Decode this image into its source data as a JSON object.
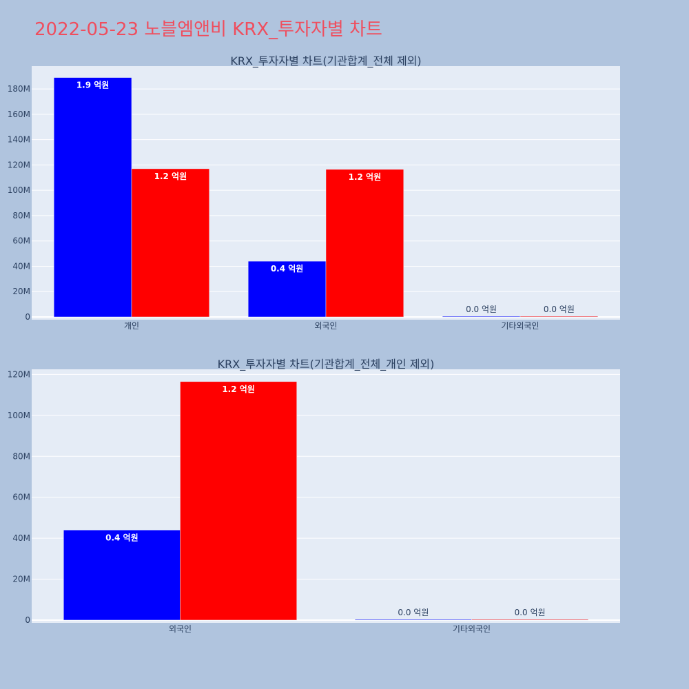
{
  "page": {
    "title": "2022-05-23 노블엠앤비 KRX_투자자별 차트"
  },
  "chart_data": [
    {
      "type": "bar",
      "title": "KRX_투자자별 차트(기관합계_전체 제외)",
      "categories": [
        "개인",
        "외국인",
        "기타외국인"
      ],
      "series": [
        {
          "color": "#0000ff",
          "values": [
            189000000,
            44000000,
            0
          ],
          "labels": [
            "1.9 억원",
            "0.4 억원",
            "0.0 억원"
          ]
        },
        {
          "color": "#ff0000",
          "values": [
            117000000,
            116500000,
            0
          ],
          "labels": [
            "1.2 억원",
            "1.2 억원",
            "0.0 억원"
          ]
        }
      ],
      "ylim": [
        0,
        198000000
      ],
      "yticks": [
        0,
        20000000,
        40000000,
        60000000,
        80000000,
        100000000,
        120000000,
        140000000,
        160000000,
        180000000
      ],
      "ytick_labels": [
        "0",
        "20M",
        "40M",
        "60M",
        "80M",
        "100M",
        "120M",
        "140M",
        "160M",
        "180M"
      ],
      "grid": true,
      "legend": "none"
    },
    {
      "type": "bar",
      "title": "KRX_투자자별 차트(기관합계_전체_개인 제외)",
      "categories": [
        "외국인",
        "기타외국인"
      ],
      "series": [
        {
          "color": "#0000ff",
          "values": [
            44000000,
            0
          ],
          "labels": [
            "0.4 억원",
            "0.0 억원"
          ]
        },
        {
          "color": "#ff0000",
          "values": [
            116500000,
            0
          ],
          "labels": [
            "1.2 억원",
            "0.0 억원"
          ]
        }
      ],
      "ylim": [
        0,
        122500000
      ],
      "yticks": [
        0,
        20000000,
        40000000,
        60000000,
        80000000,
        100000000,
        120000000
      ],
      "ytick_labels": [
        "0",
        "20M",
        "40M",
        "60M",
        "80M",
        "100M",
        "120M"
      ],
      "grid": true,
      "legend": "none"
    }
  ]
}
